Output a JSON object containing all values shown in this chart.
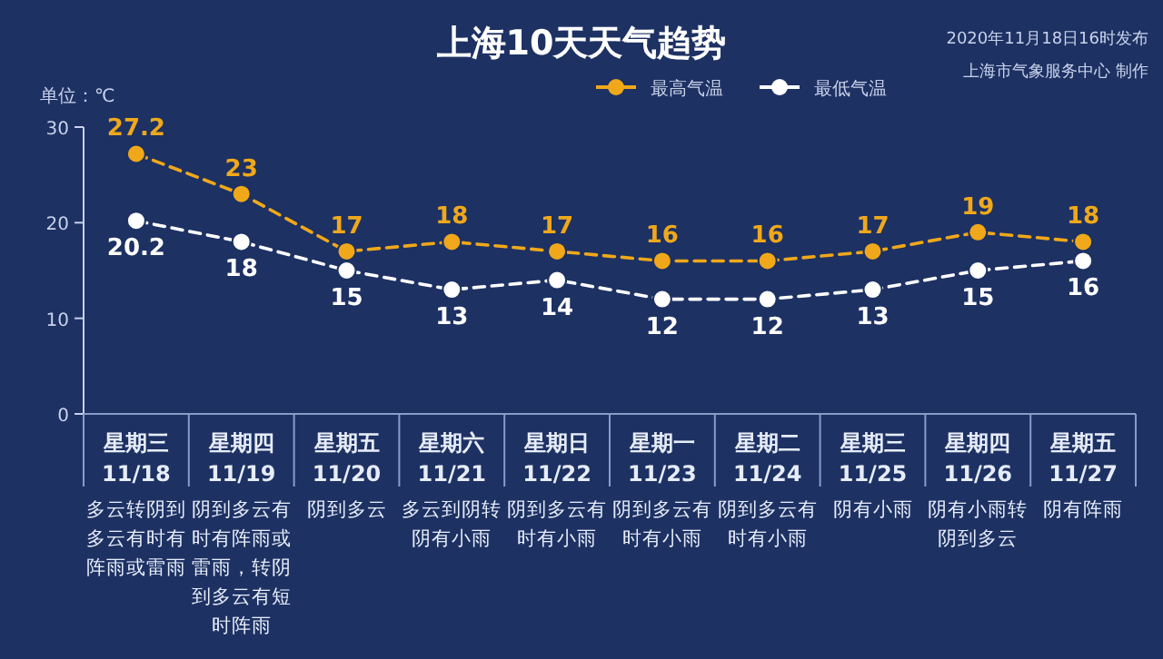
{
  "chart_data": {
    "type": "line",
    "title": "上海10天天气趋势",
    "ylabel": "单位：℃",
    "categories": [
      "星期三 11/18",
      "星期四 11/19",
      "星期五 11/20",
      "星期六 11/21",
      "星期日 11/22",
      "星期一 11/23",
      "星期二 11/24",
      "星期三 11/25",
      "星期四 11/26",
      "星期五 11/27"
    ],
    "series": [
      {
        "name": "最高气温",
        "color": "#f0a81a",
        "values": [
          27.2,
          23,
          17,
          18,
          17,
          16,
          16,
          17,
          19,
          18
        ]
      },
      {
        "name": "最低气温",
        "color": "#ffffff",
        "values": [
          20.2,
          18,
          15,
          13,
          14,
          12,
          12,
          13,
          15,
          16
        ]
      }
    ],
    "ylim": [
      0,
      30
    ],
    "yticks": [
      0,
      10,
      20,
      30
    ],
    "data_labels": true,
    "marker": "circle",
    "line_style": "dashed",
    "legend": "top",
    "grid": false,
    "annotations": [
      "2020年11月18日16时发布",
      "上海市气象服务中心 制作",
      "多云转阴到多云有时有阵雨或雷雨",
      "阴到多云有时有阵雨或雷雨，转阴到多云有短时阵雨",
      "阴到多云",
      "多云到阴转阴有小雨",
      "阴到多云有时有小雨",
      "阴到多云有时有小雨",
      "阴到多云有时有小雨",
      "阴有小雨",
      "阴有小雨转阴到多云",
      "阴有阵雨"
    ]
  }
}
